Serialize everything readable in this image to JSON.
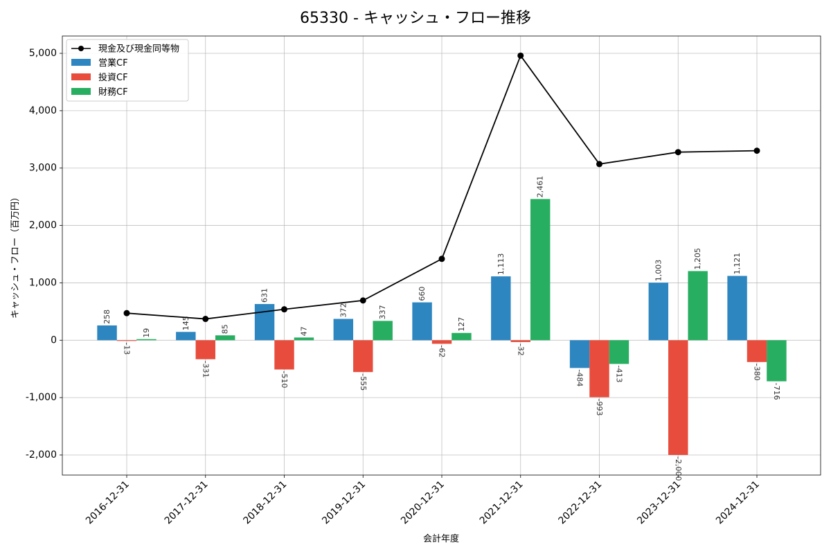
{
  "chart_data": {
    "type": "bar",
    "title": "65330 - キャッシュ・フロー推移",
    "xlabel": "会計年度",
    "ylabel": "キャッシュ・フロー（百万円）",
    "categories": [
      "2016-12-31",
      "2017-12-31",
      "2018-12-31",
      "2019-12-31",
      "2020-12-31",
      "2021-12-31",
      "2022-12-31",
      "2023-12-31",
      "2024-12-31"
    ],
    "series": [
      {
        "name": "営業CF",
        "color": "#2E86C1",
        "values": [
          258,
          145,
          631,
          372,
          660,
          1113,
          -484,
          1003,
          1121
        ]
      },
      {
        "name": "投資CF",
        "color": "#E74C3C",
        "values": [
          -13,
          -331,
          -510,
          -555,
          -62,
          -32,
          -993,
          -2000,
          -380
        ]
      },
      {
        "name": "財務CF",
        "color": "#27AE60",
        "values": [
          19,
          85,
          47,
          337,
          127,
          2461,
          -413,
          1205,
          -716
        ]
      }
    ],
    "line_series": {
      "name": "現金及び現金同等物",
      "color": "#000000",
      "values": [
        472,
        371,
        539,
        693,
        1418,
        4960,
        3070,
        3278,
        3303
      ]
    },
    "ylim": [
      -2350,
      5302
    ],
    "yticks": [
      -2000,
      -1000,
      0,
      1000,
      2000,
      3000,
      4000,
      5000
    ],
    "grid": true,
    "legend": "top-left"
  }
}
